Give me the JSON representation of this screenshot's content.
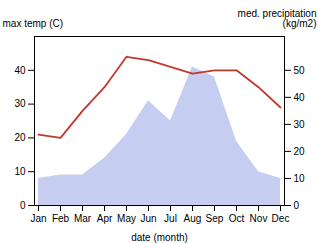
{
  "chart_data": {
    "type": "line",
    "categories": [
      "Jan",
      "Feb",
      "Mar",
      "Apr",
      "May",
      "Jun",
      "Jul",
      "Aug",
      "Sep",
      "Oct",
      "Nov",
      "Dec"
    ],
    "xlabel": "date (month)",
    "ylabel": "max temp (C)",
    "y2label": "med. precipitation\n(kg/m2)",
    "ylim": [
      0,
      50
    ],
    "yticks": [
      0,
      10,
      20,
      30,
      40
    ],
    "y2lim": [
      0,
      62.5
    ],
    "y2ticks": [
      0,
      10,
      20,
      30,
      40,
      50
    ],
    "grid": false,
    "series": [
      {
        "type": "area",
        "color": "#c5cef0",
        "values": [
          8,
          9,
          9,
          14,
          21,
          31,
          25,
          41,
          38,
          19,
          10,
          8
        ]
      },
      {
        "type": "line",
        "color": "#c0392b",
        "values": [
          21,
          20,
          28,
          35,
          44,
          43,
          41,
          39,
          40,
          40,
          35,
          29
        ]
      }
    ]
  }
}
